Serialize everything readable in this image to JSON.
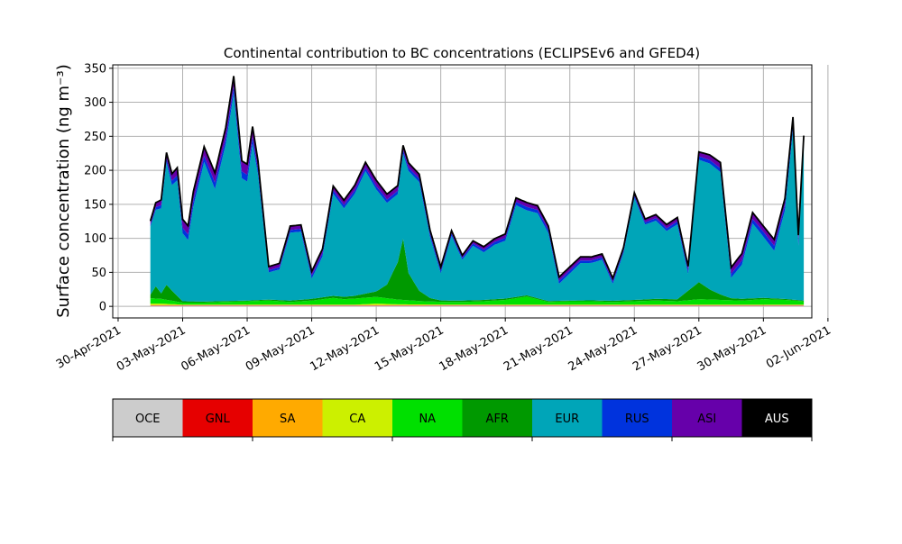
{
  "chart_data": {
    "type": "area",
    "stacked": true,
    "title": "Continental contribution to BC concentrations (ECLIPSEv6 and GFED4)",
    "ylabel": "Surface concentration (ng m⁻³)",
    "xlabel": "",
    "ylim": [
      -17,
      355
    ],
    "xlim": [
      "2021-04-29T18:00",
      "2021-06-01T06:00"
    ],
    "grid": true,
    "yticks": [
      0,
      50,
      100,
      150,
      200,
      250,
      300,
      350
    ],
    "xticks": [
      "2021-04-30",
      "2021-05-03",
      "2021-05-06",
      "2021-05-09",
      "2021-05-12",
      "2021-05-15",
      "2021-05-18",
      "2021-05-21",
      "2021-05-24",
      "2021-05-27",
      "2021-05-30",
      "2021-06-02"
    ],
    "xtick_labels": [
      "30-Apr-2021",
      "03-May-2021",
      "06-May-2021",
      "09-May-2021",
      "12-May-2021",
      "15-May-2021",
      "18-May-2021",
      "21-May-2021",
      "24-May-2021",
      "27-May-2021",
      "30-May-2021",
      "02-Jun-2021"
    ],
    "total_line_color": "#000000",
    "legend": {
      "placement": "bottom colorbar",
      "entries": [
        "OCE",
        "GNL",
        "SA",
        "CA",
        "NA",
        "AFR",
        "EUR",
        "RUS",
        "ASI",
        "AUS"
      ]
    },
    "series": [
      {
        "name": "OCE",
        "color": "#cccccc",
        "points": [
          [
            "2021-05-01T12:00",
            1
          ],
          [
            "2021-05-03T00:00",
            1
          ],
          [
            "2021-05-06T00:00",
            1
          ],
          [
            "2021-05-09T00:00",
            1
          ],
          [
            "2021-05-12T00:00",
            1
          ],
          [
            "2021-05-15T00:00",
            1
          ],
          [
            "2021-05-18T00:00",
            1
          ],
          [
            "2021-05-21T00:00",
            1
          ],
          [
            "2021-05-24T00:00",
            1
          ],
          [
            "2021-05-27T00:00",
            1
          ],
          [
            "2021-05-30T00:00",
            1
          ],
          [
            "2021-05-31T21:00",
            1
          ]
        ]
      },
      {
        "name": "GNL",
        "color": "#e60000",
        "points": [
          [
            "2021-05-01T12:00",
            0.5
          ],
          [
            "2021-05-31T21:00",
            0.5
          ]
        ]
      },
      {
        "name": "SA",
        "color": "#ffaa00",
        "points": [
          [
            "2021-05-01T12:00",
            0.5
          ],
          [
            "2021-05-31T21:00",
            0.5
          ]
        ]
      },
      {
        "name": "CA",
        "color": "#ccf000",
        "points": [
          [
            "2021-05-01T12:00",
            2
          ],
          [
            "2021-05-02T00:00",
            2
          ],
          [
            "2021-05-03T00:00",
            0.5
          ],
          [
            "2021-05-11T00:00",
            0.5
          ],
          [
            "2021-05-12T00:00",
            2
          ],
          [
            "2021-05-13T00:00",
            1
          ],
          [
            "2021-05-16T00:00",
            0.5
          ],
          [
            "2021-05-31T21:00",
            0.5
          ]
        ]
      },
      {
        "name": "NA",
        "color": "#00e000",
        "points": [
          [
            "2021-05-01T12:00",
            8
          ],
          [
            "2021-05-02T00:00",
            7
          ],
          [
            "2021-05-02T12:00",
            5
          ],
          [
            "2021-05-03T00:00",
            3
          ],
          [
            "2021-05-04T00:00",
            3
          ],
          [
            "2021-05-05T00:00",
            4
          ],
          [
            "2021-05-06T00:00",
            5
          ],
          [
            "2021-05-07T00:00",
            6
          ],
          [
            "2021-05-08T00:00",
            4
          ],
          [
            "2021-05-09T00:00",
            6
          ],
          [
            "2021-05-10T00:00",
            10
          ],
          [
            "2021-05-10T12:00",
            8
          ],
          [
            "2021-05-11T00:00",
            9
          ],
          [
            "2021-05-12T00:00",
            10
          ],
          [
            "2021-05-13T00:00",
            7
          ],
          [
            "2021-05-14T00:00",
            5
          ],
          [
            "2021-05-15T00:00",
            4
          ],
          [
            "2021-05-16T00:00",
            4
          ],
          [
            "2021-05-17T00:00",
            5
          ],
          [
            "2021-05-18T00:00",
            7
          ],
          [
            "2021-05-19T00:00",
            12
          ],
          [
            "2021-05-19T12:00",
            8
          ],
          [
            "2021-05-20T00:00",
            4
          ],
          [
            "2021-05-21T00:00",
            5
          ],
          [
            "2021-05-22T00:00",
            5
          ],
          [
            "2021-05-23T00:00",
            4
          ],
          [
            "2021-05-24T00:00",
            5
          ],
          [
            "2021-05-25T00:00",
            6
          ],
          [
            "2021-05-26T00:00",
            5
          ],
          [
            "2021-05-27T00:00",
            8
          ],
          [
            "2021-05-28T00:00",
            7
          ],
          [
            "2021-05-29T00:00",
            6
          ],
          [
            "2021-05-30T00:00",
            8
          ],
          [
            "2021-05-31T00:00",
            7
          ],
          [
            "2021-05-31T21:00",
            5
          ]
        ]
      },
      {
        "name": "AFR",
        "color": "#009900",
        "points": [
          [
            "2021-05-01T12:00",
            5
          ],
          [
            "2021-05-01T18:00",
            18
          ],
          [
            "2021-05-02T00:00",
            8
          ],
          [
            "2021-05-02T06:00",
            22
          ],
          [
            "2021-05-02T12:00",
            15
          ],
          [
            "2021-05-03T00:00",
            2
          ],
          [
            "2021-05-06T00:00",
            1
          ],
          [
            "2021-05-08T00:00",
            2
          ],
          [
            "2021-05-10T00:00",
            3
          ],
          [
            "2021-05-11T00:00",
            4
          ],
          [
            "2021-05-12T00:00",
            8
          ],
          [
            "2021-05-12T12:00",
            20
          ],
          [
            "2021-05-13T00:00",
            55
          ],
          [
            "2021-05-13T06:00",
            90
          ],
          [
            "2021-05-13T12:00",
            40
          ],
          [
            "2021-05-14T00:00",
            15
          ],
          [
            "2021-05-14T12:00",
            5
          ],
          [
            "2021-05-15T00:00",
            2
          ],
          [
            "2021-05-18T00:00",
            2
          ],
          [
            "2021-05-21T00:00",
            1
          ],
          [
            "2021-05-24T00:00",
            2
          ],
          [
            "2021-05-26T00:00",
            3
          ],
          [
            "2021-05-27T00:00",
            25
          ],
          [
            "2021-05-27T12:00",
            15
          ],
          [
            "2021-05-28T00:00",
            8
          ],
          [
            "2021-05-28T12:00",
            3
          ],
          [
            "2021-05-30T00:00",
            2
          ],
          [
            "2021-05-31T21:00",
            1
          ]
        ]
      },
      {
        "name": "EUR",
        "color": "#00a5b8",
        "points": [
          [
            "2021-05-01T12:00",
            100
          ],
          [
            "2021-05-02T00:00",
            125
          ],
          [
            "2021-05-02T06:00",
            180
          ],
          [
            "2021-05-02T12:00",
            155
          ],
          [
            "2021-05-02T18:00",
            170
          ],
          [
            "2021-05-03T00:00",
            100
          ],
          [
            "2021-05-03T06:00",
            90
          ],
          [
            "2021-05-03T12:00",
            140
          ],
          [
            "2021-05-04T00:00",
            205
          ],
          [
            "2021-05-04T12:00",
            165
          ],
          [
            "2021-05-05T00:00",
            230
          ],
          [
            "2021-05-05T09:00",
            305
          ],
          [
            "2021-05-05T18:00",
            180
          ],
          [
            "2021-05-06T00:00",
            175
          ],
          [
            "2021-05-06T06:00",
            230
          ],
          [
            "2021-05-06T12:00",
            185
          ],
          [
            "2021-05-07T00:00",
            40
          ],
          [
            "2021-05-07T12:00",
            45
          ],
          [
            "2021-05-08T00:00",
            100
          ],
          [
            "2021-05-08T12:00",
            100
          ],
          [
            "2021-05-09T00:00",
            30
          ],
          [
            "2021-05-09T12:00",
            60
          ],
          [
            "2021-05-10T00:00",
            150
          ],
          [
            "2021-05-10T12:00",
            130
          ],
          [
            "2021-05-11T00:00",
            150
          ],
          [
            "2021-05-11T12:00",
            180
          ],
          [
            "2021-05-12T00:00",
            150
          ],
          [
            "2021-05-12T12:00",
            120
          ],
          [
            "2021-05-13T00:00",
            100
          ],
          [
            "2021-05-13T12:00",
            150
          ],
          [
            "2021-05-14T00:00",
            160
          ],
          [
            "2021-05-14T12:00",
            90
          ],
          [
            "2021-05-15T00:00",
            40
          ],
          [
            "2021-05-15T12:00",
            95
          ],
          [
            "2021-05-16T00:00",
            60
          ],
          [
            "2021-05-16T12:00",
            80
          ],
          [
            "2021-05-17T00:00",
            70
          ],
          [
            "2021-05-17T12:00",
            80
          ],
          [
            "2021-05-18T00:00",
            85
          ],
          [
            "2021-05-18T12:00",
            135
          ],
          [
            "2021-05-19T00:00",
            125
          ],
          [
            "2021-05-19T12:00",
            125
          ],
          [
            "2021-05-20T00:00",
            100
          ],
          [
            "2021-05-20T12:00",
            25
          ],
          [
            "2021-05-21T00:00",
            40
          ],
          [
            "2021-05-21T12:00",
            55
          ],
          [
            "2021-05-22T00:00",
            55
          ],
          [
            "2021-05-22T12:00",
            60
          ],
          [
            "2021-05-23T00:00",
            25
          ],
          [
            "2021-05-23T12:00",
            70
          ],
          [
            "2021-05-24T00:00",
            150
          ],
          [
            "2021-05-24T12:00",
            110
          ],
          [
            "2021-05-25T00:00",
            115
          ],
          [
            "2021-05-25T12:00",
            100
          ],
          [
            "2021-05-26T00:00",
            110
          ],
          [
            "2021-05-26T12:00",
            25
          ],
          [
            "2021-05-27T00:00",
            180
          ],
          [
            "2021-05-27T12:00",
            185
          ],
          [
            "2021-05-28T00:00",
            180
          ],
          [
            "2021-05-28T12:00",
            30
          ],
          [
            "2021-05-29T00:00",
            50
          ],
          [
            "2021-05-29T12:00",
            110
          ],
          [
            "2021-05-30T00:00",
            90
          ],
          [
            "2021-05-30T12:00",
            70
          ],
          [
            "2021-05-31T00:00",
            130
          ],
          [
            "2021-05-31T09:00",
            250
          ],
          [
            "2021-05-31T15:00",
            80
          ],
          [
            "2021-05-31T21:00",
            230
          ]
        ]
      },
      {
        "name": "RUS",
        "color": "#0033dd",
        "points": [
          [
            "2021-05-01T12:00",
            3
          ],
          [
            "2021-05-03T00:00",
            8
          ],
          [
            "2021-05-05T09:00",
            10
          ],
          [
            "2021-05-06T06:00",
            10
          ],
          [
            "2021-05-07T00:00",
            3
          ],
          [
            "2021-05-10T00:00",
            5
          ],
          [
            "2021-05-12T00:00",
            5
          ],
          [
            "2021-05-14T00:00",
            5
          ],
          [
            "2021-05-16T00:00",
            3
          ],
          [
            "2021-05-19T00:00",
            5
          ],
          [
            "2021-05-21T00:00",
            4
          ],
          [
            "2021-05-24T00:00",
            3
          ],
          [
            "2021-05-27T00:00",
            5
          ],
          [
            "2021-05-29T00:00",
            6
          ],
          [
            "2021-05-30T00:00",
            7
          ],
          [
            "2021-05-31T09:00",
            8
          ],
          [
            "2021-05-31T21:00",
            6
          ]
        ]
      },
      {
        "name": "ASI",
        "color": "#6600aa",
        "points": [
          [
            "2021-05-01T12:00",
            5
          ],
          [
            "2021-05-03T00:00",
            12
          ],
          [
            "2021-05-05T09:00",
            15
          ],
          [
            "2021-05-06T06:00",
            15
          ],
          [
            "2021-05-07T00:00",
            5
          ],
          [
            "2021-05-10T00:00",
            6
          ],
          [
            "2021-05-12T00:00",
            8
          ],
          [
            "2021-05-14T00:00",
            6
          ],
          [
            "2021-05-16T00:00",
            3
          ],
          [
            "2021-05-19T00:00",
            6
          ],
          [
            "2021-05-21T00:00",
            5
          ],
          [
            "2021-05-24T00:00",
            4
          ],
          [
            "2021-05-27T00:00",
            6
          ],
          [
            "2021-05-29T00:00",
            10
          ],
          [
            "2021-05-30T00:00",
            8
          ],
          [
            "2021-05-31T09:00",
            10
          ],
          [
            "2021-05-31T21:00",
            6
          ]
        ]
      },
      {
        "name": "AUS",
        "color": "#000000",
        "points": [
          [
            "2021-05-01T12:00",
            0.5
          ],
          [
            "2021-05-31T21:00",
            0.5
          ]
        ]
      }
    ]
  }
}
